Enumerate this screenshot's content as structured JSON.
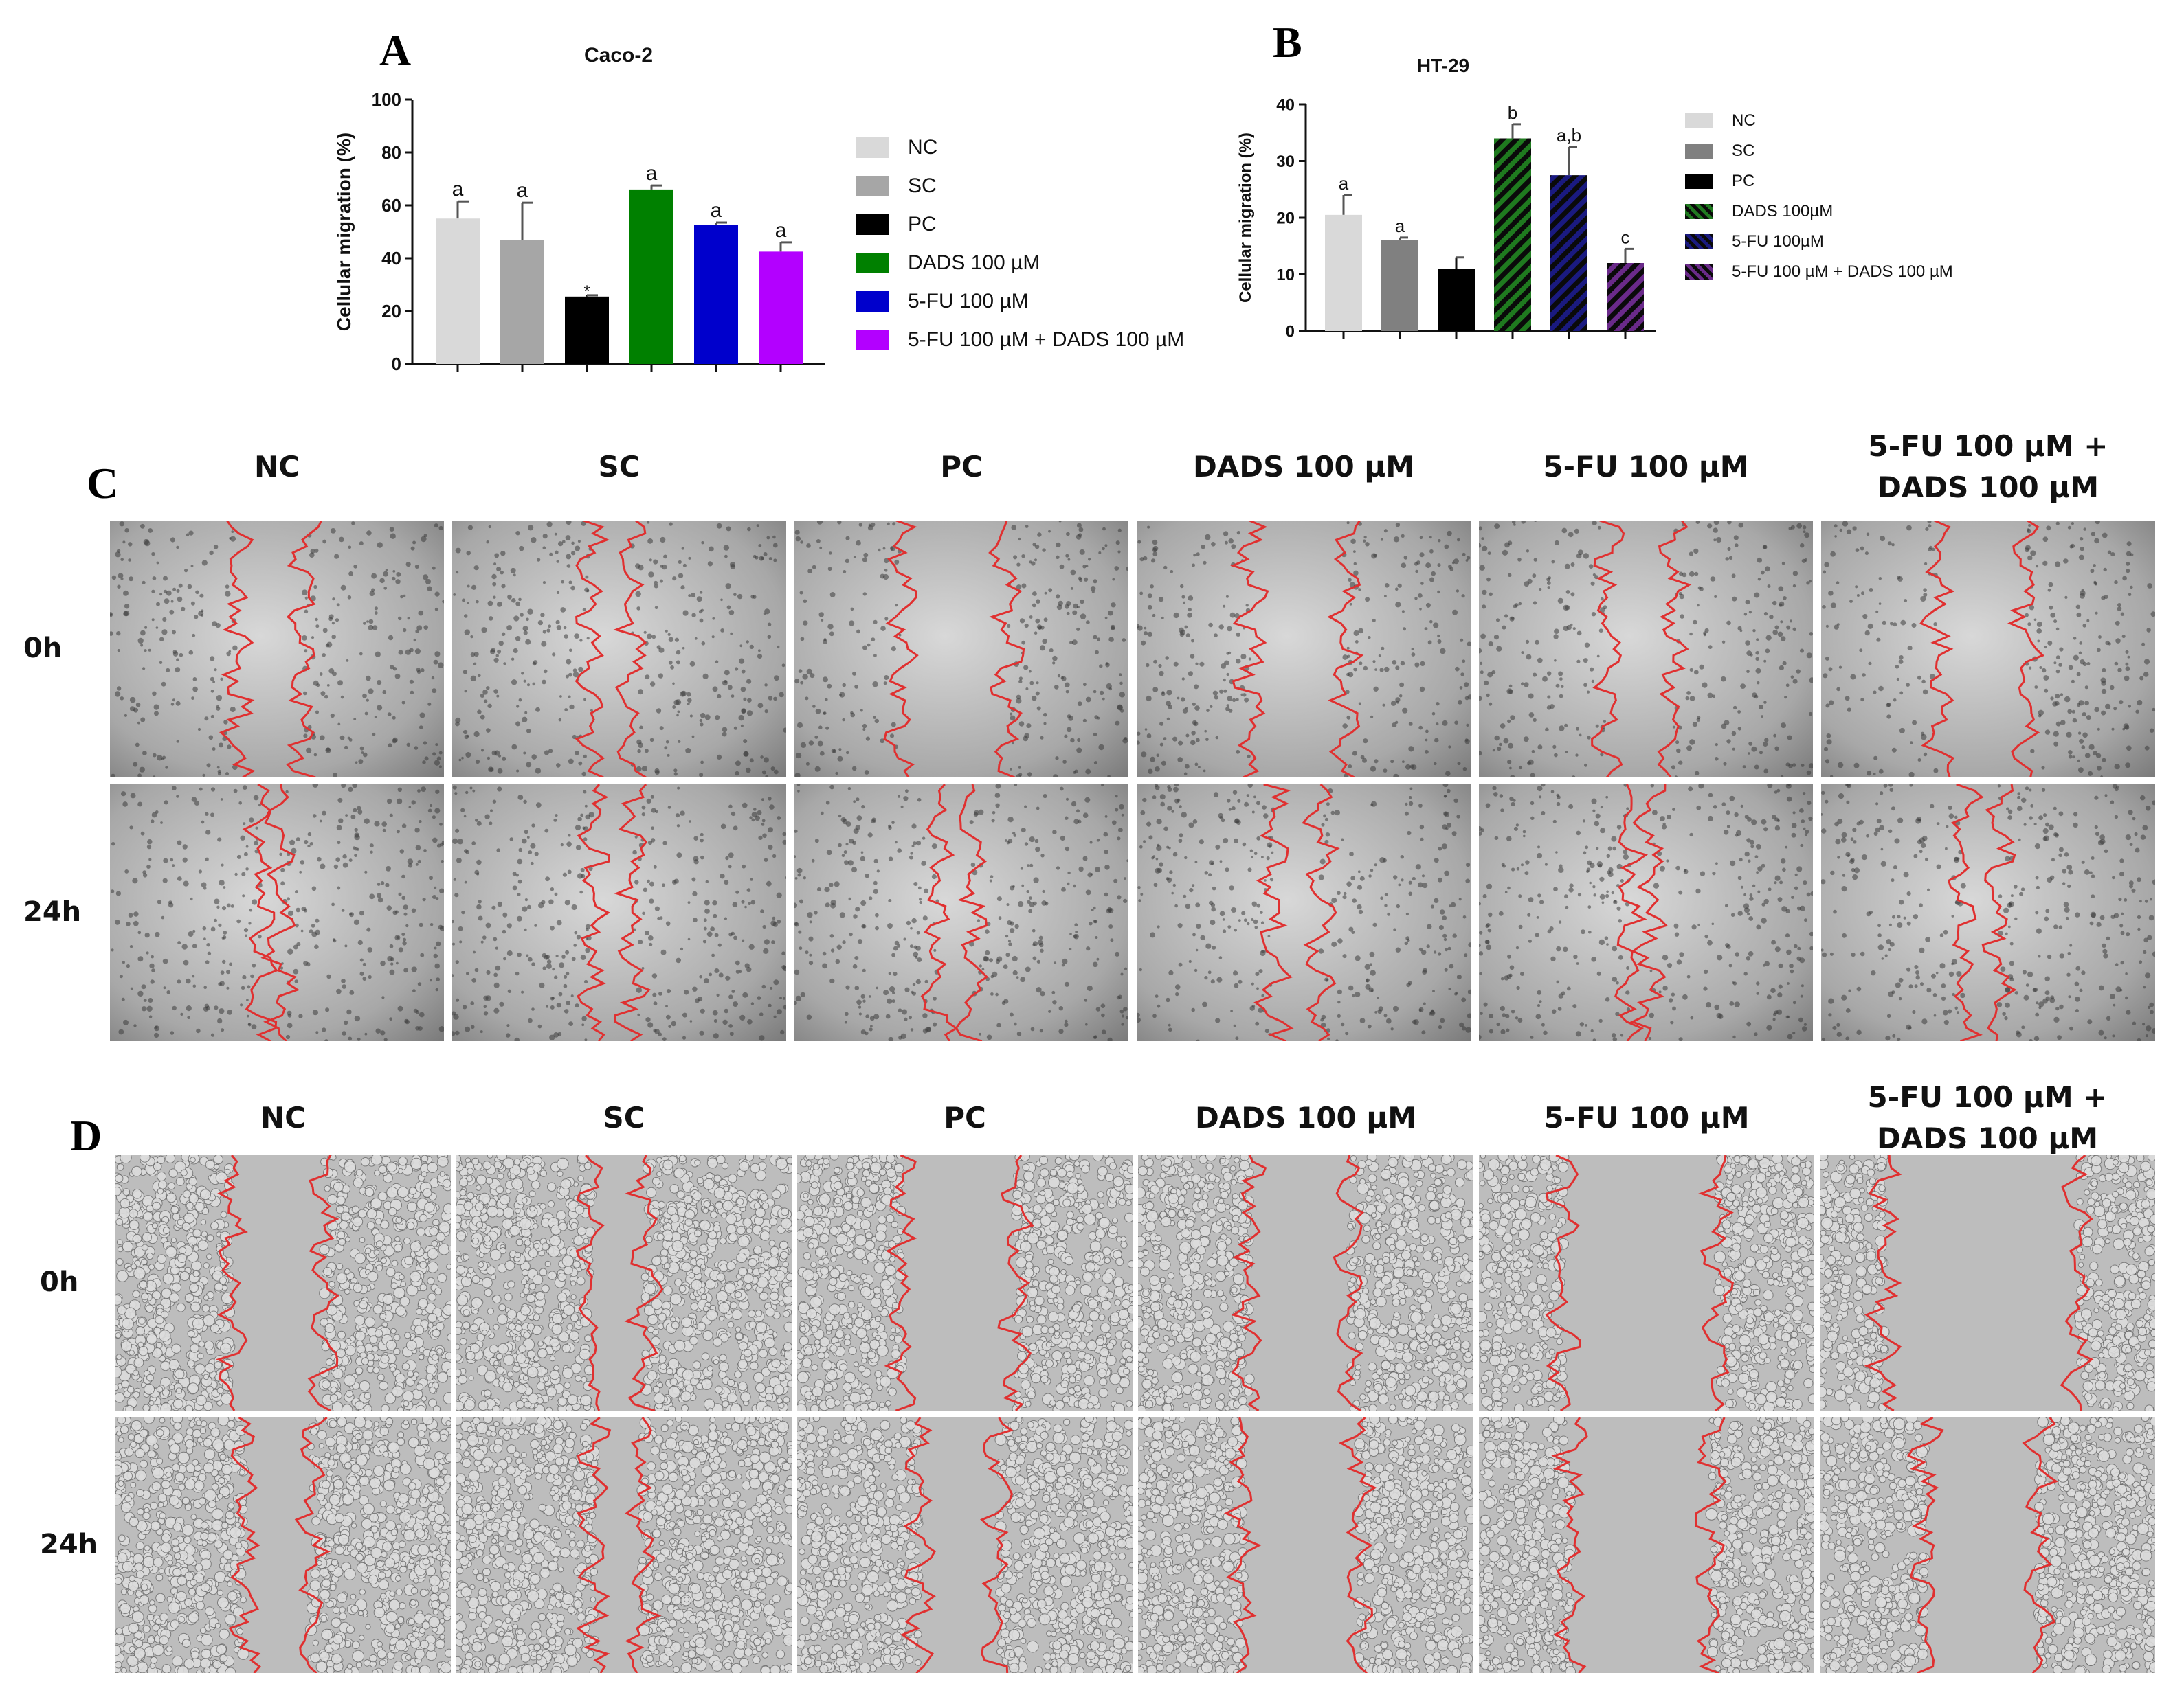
{
  "panel_letters": {
    "a": "A",
    "b": "B",
    "c": "C",
    "d": "D"
  },
  "colors": {
    "NC": "#d9d9d9",
    "SC": "#a6a6a6",
    "PC": "#000000",
    "DADS": "#008000",
    "FU": "#0000cc",
    "FUDADS": "#b300ff",
    "NC_b": "#d9d9d9",
    "SC_b": "#808080",
    "PC_b": "#000000",
    "DADS_b": "#1f7a1f",
    "FU_b": "#1a1a80",
    "FUDADS_b": "#6a2a8a",
    "wound_line": "#e03030"
  },
  "chart_data": [
    {
      "type": "bar",
      "title": "Caco-2",
      "ylabel": "Cellular migration (%)",
      "xlabel": "",
      "ylim": [
        0,
        100
      ],
      "yticks": [
        0,
        20,
        40,
        60,
        80,
        100
      ],
      "categories": [
        "NC",
        "SC",
        "PC",
        "DADS 100 µM",
        "5-FU 100 µM",
        "5-FU 100 µM + DADS 100 µM"
      ],
      "values": [
        55,
        47,
        25.5,
        66,
        52.5,
        42.5
      ],
      "errors": [
        6.5,
        14,
        0.5,
        1.5,
        1,
        3.5
      ],
      "annotations": [
        "a",
        "a",
        "*",
        "a",
        "a",
        "a"
      ],
      "hatched": [
        false,
        false,
        false,
        false,
        false,
        false
      ],
      "legend": [
        "NC",
        "SC",
        "PC",
        "DADS 100 µM",
        "5-FU 100 µM",
        "5-FU 100 µM + DADS 100 µM"
      ],
      "legend_position": "right"
    },
    {
      "type": "bar",
      "title": "HT-29",
      "ylabel": "Cellular migration (%)",
      "xlabel": "",
      "ylim": [
        0,
        40
      ],
      "yticks": [
        0,
        10,
        20,
        30,
        40
      ],
      "categories": [
        "NC",
        "SC",
        "PC",
        "DADS 100µM",
        "5-FU 100µM",
        "5-FU 100 µM + DADS 100 µM"
      ],
      "values": [
        20.5,
        16,
        11,
        34,
        27.5,
        12
      ],
      "errors": [
        3.5,
        0.5,
        2,
        2.5,
        5,
        2.5
      ],
      "annotations": [
        "a",
        "a",
        "",
        "b",
        "a,b",
        "c"
      ],
      "hatched": [
        false,
        false,
        false,
        true,
        true,
        true
      ],
      "legend": [
        "NC",
        "SC",
        "PC",
        "DADS 100µM",
        "5-FU 100µM",
        "5-FU 100 µM + DADS 100 µM"
      ],
      "legend_position": "right"
    }
  ],
  "panel_c": {
    "columns": [
      "NC",
      "SC",
      "PC",
      "DADS 100 µM",
      "5-FU 100 µM",
      "5-FU 100 µM +\nDADS 100 µM"
    ],
    "rows": [
      "0h",
      "24h"
    ]
  },
  "panel_d": {
    "columns": [
      "NC",
      "SC",
      "PC",
      "DADS 100 µM",
      "5-FU 100 µM",
      "5-FU 100 µM +\nDADS 100 µM"
    ],
    "rows": [
      "0h",
      "24h"
    ]
  }
}
